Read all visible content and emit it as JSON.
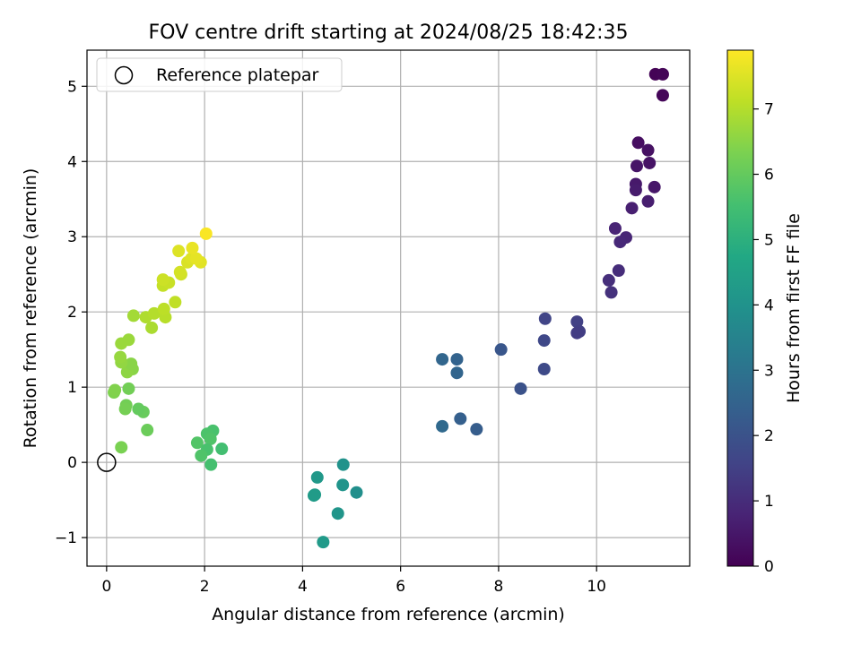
{
  "chart_data": {
    "type": "scatter",
    "title": "FOV centre drift starting at 2024/08/25 18:42:35",
    "xlabel": "Angular distance from reference (arcmin)",
    "ylabel": "Rotation from reference (arcmin)",
    "xlim": [
      -0.4,
      11.9
    ],
    "ylim": [
      -1.38,
      5.48
    ],
    "xticks": [
      0,
      2,
      4,
      6,
      8,
      10
    ],
    "xtick_labels": [
      "0",
      "2",
      "4",
      "6",
      "8",
      "10"
    ],
    "yticks": [
      -1,
      0,
      1,
      2,
      3,
      4,
      5
    ],
    "ytick_labels": [
      "−1",
      "0",
      "1",
      "2",
      "3",
      "4",
      "5"
    ],
    "grid": true,
    "legend": {
      "placement": "top-left",
      "entries": [
        "Reference platepar"
      ]
    },
    "reference_point": {
      "x": 0,
      "y": 0,
      "label": "Reference platepar"
    },
    "colorbar": {
      "label": "Hours from first FF file",
      "min": 0,
      "max": 7.9,
      "ticks": [
        0,
        1,
        2,
        3,
        4,
        5,
        6,
        7
      ],
      "tick_labels": [
        "0",
        "1",
        "2",
        "3",
        "4",
        "5",
        "6",
        "7"
      ],
      "colormap": [
        "#440154",
        "#482475",
        "#414487",
        "#355f8d",
        "#2a788e",
        "#21918c",
        "#22a884",
        "#44bf70",
        "#7ad151",
        "#bddf26",
        "#fde725"
      ]
    },
    "points": [
      {
        "x": 11.2,
        "y": 5.16,
        "c": 0.05
      },
      {
        "x": 11.35,
        "y": 5.16,
        "c": 0.08
      },
      {
        "x": 11.35,
        "y": 4.88,
        "c": 0.12
      },
      {
        "x": 10.85,
        "y": 4.25,
        "c": 0.3
      },
      {
        "x": 11.05,
        "y": 4.15,
        "c": 0.35
      },
      {
        "x": 11.08,
        "y": 3.98,
        "c": 0.4
      },
      {
        "x": 10.82,
        "y": 3.94,
        "c": 0.45
      },
      {
        "x": 11.18,
        "y": 3.66,
        "c": 0.5
      },
      {
        "x": 10.8,
        "y": 3.7,
        "c": 0.55
      },
      {
        "x": 10.8,
        "y": 3.62,
        "c": 0.6
      },
      {
        "x": 11.05,
        "y": 3.47,
        "c": 0.65
      },
      {
        "x": 10.72,
        "y": 3.38,
        "c": 0.7
      },
      {
        "x": 10.38,
        "y": 3.11,
        "c": 0.8
      },
      {
        "x": 10.6,
        "y": 2.99,
        "c": 0.85
      },
      {
        "x": 10.48,
        "y": 2.93,
        "c": 0.9
      },
      {
        "x": 10.45,
        "y": 2.55,
        "c": 1.0
      },
      {
        "x": 10.25,
        "y": 2.42,
        "c": 1.05
      },
      {
        "x": 10.3,
        "y": 2.26,
        "c": 1.1
      },
      {
        "x": 8.95,
        "y": 1.91,
        "c": 1.6
      },
      {
        "x": 9.6,
        "y": 1.87,
        "c": 1.5
      },
      {
        "x": 9.65,
        "y": 1.74,
        "c": 1.45
      },
      {
        "x": 9.6,
        "y": 1.72,
        "c": 1.4
      },
      {
        "x": 8.93,
        "y": 1.62,
        "c": 1.7
      },
      {
        "x": 8.93,
        "y": 1.24,
        "c": 1.75
      },
      {
        "x": 8.45,
        "y": 0.98,
        "c": 2.0
      },
      {
        "x": 8.05,
        "y": 1.5,
        "c": 2.1
      },
      {
        "x": 7.15,
        "y": 1.37,
        "c": 2.5
      },
      {
        "x": 6.85,
        "y": 1.37,
        "c": 2.6
      },
      {
        "x": 7.15,
        "y": 1.19,
        "c": 2.55
      },
      {
        "x": 7.22,
        "y": 0.58,
        "c": 2.4
      },
      {
        "x": 7.55,
        "y": 0.44,
        "c": 2.3
      },
      {
        "x": 6.85,
        "y": 0.48,
        "c": 2.7
      },
      {
        "x": 4.83,
        "y": -0.03,
        "c": 4.0
      },
      {
        "x": 4.3,
        "y": -0.2,
        "c": 4.2
      },
      {
        "x": 4.82,
        "y": -0.3,
        "c": 4.05
      },
      {
        "x": 5.1,
        "y": -0.4,
        "c": 3.9
      },
      {
        "x": 4.25,
        "y": -0.43,
        "c": 4.3
      },
      {
        "x": 4.23,
        "y": -0.44,
        "c": 4.3
      },
      {
        "x": 4.72,
        "y": -0.68,
        "c": 4.1
      },
      {
        "x": 4.42,
        "y": -1.06,
        "c": 4.25
      },
      {
        "x": 2.17,
        "y": 0.42,
        "c": 5.6
      },
      {
        "x": 2.05,
        "y": 0.38,
        "c": 5.65
      },
      {
        "x": 2.12,
        "y": 0.31,
        "c": 5.7
      },
      {
        "x": 1.85,
        "y": 0.26,
        "c": 5.75
      },
      {
        "x": 2.35,
        "y": 0.18,
        "c": 5.5
      },
      {
        "x": 2.05,
        "y": 0.17,
        "c": 5.6
      },
      {
        "x": 1.93,
        "y": 0.09,
        "c": 5.7
      },
      {
        "x": 2.13,
        "y": -0.03,
        "c": 5.55
      },
      {
        "x": 0.3,
        "y": 0.2,
        "c": 6.3
      },
      {
        "x": 0.83,
        "y": 0.43,
        "c": 6.1
      },
      {
        "x": 0.75,
        "y": 0.67,
        "c": 6.05
      },
      {
        "x": 0.65,
        "y": 0.71,
        "c": 6.0
      },
      {
        "x": 0.4,
        "y": 0.76,
        "c": 6.2
      },
      {
        "x": 0.38,
        "y": 0.71,
        "c": 6.25
      },
      {
        "x": 0.15,
        "y": 0.93,
        "c": 6.35
      },
      {
        "x": 0.17,
        "y": 0.96,
        "c": 6.4
      },
      {
        "x": 0.45,
        "y": 0.98,
        "c": 6.2
      },
      {
        "x": 0.53,
        "y": 1.24,
        "c": 6.5
      },
      {
        "x": 0.42,
        "y": 1.2,
        "c": 6.55
      },
      {
        "x": 0.5,
        "y": 1.31,
        "c": 6.5
      },
      {
        "x": 0.3,
        "y": 1.33,
        "c": 6.6
      },
      {
        "x": 0.28,
        "y": 1.4,
        "c": 6.65
      },
      {
        "x": 0.3,
        "y": 1.58,
        "c": 6.7
      },
      {
        "x": 0.45,
        "y": 1.63,
        "c": 6.7
      },
      {
        "x": 0.55,
        "y": 1.95,
        "c": 6.8
      },
      {
        "x": 0.92,
        "y": 1.79,
        "c": 6.9
      },
      {
        "x": 0.8,
        "y": 1.93,
        "c": 6.95
      },
      {
        "x": 0.97,
        "y": 1.98,
        "c": 7.0
      },
      {
        "x": 1.2,
        "y": 1.93,
        "c": 7.05
      },
      {
        "x": 1.17,
        "y": 2.04,
        "c": 7.1
      },
      {
        "x": 1.4,
        "y": 2.13,
        "c": 7.15
      },
      {
        "x": 1.15,
        "y": 2.35,
        "c": 7.2
      },
      {
        "x": 1.27,
        "y": 2.39,
        "c": 7.25
      },
      {
        "x": 1.15,
        "y": 2.43,
        "c": 7.3
      },
      {
        "x": 1.52,
        "y": 2.5,
        "c": 7.35
      },
      {
        "x": 1.5,
        "y": 2.53,
        "c": 7.4
      },
      {
        "x": 1.65,
        "y": 2.66,
        "c": 7.45
      },
      {
        "x": 1.73,
        "y": 2.71,
        "c": 7.5
      },
      {
        "x": 1.92,
        "y": 2.66,
        "c": 7.55
      },
      {
        "x": 1.83,
        "y": 2.71,
        "c": 7.6
      },
      {
        "x": 1.47,
        "y": 2.81,
        "c": 7.5
      },
      {
        "x": 1.75,
        "y": 2.85,
        "c": 7.65
      },
      {
        "x": 2.03,
        "y": 3.04,
        "c": 7.85
      }
    ]
  }
}
